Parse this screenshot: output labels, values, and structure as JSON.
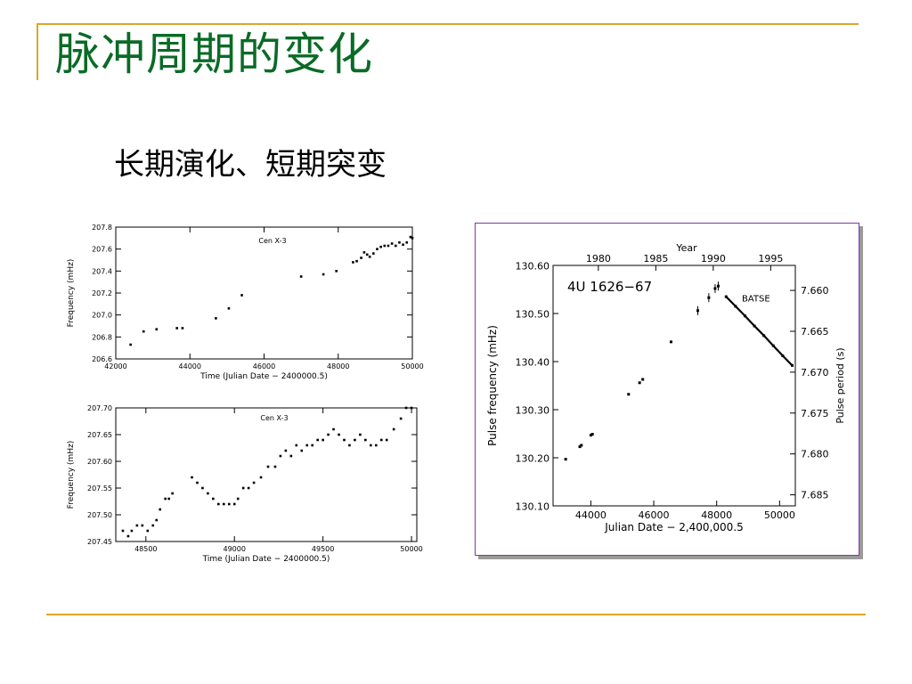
{
  "slide": {
    "title": "脉冲周期的变化",
    "subtitle": "长期演化、短期突变",
    "accent_color": "#e0a526",
    "title_color": "#0a6b26"
  },
  "chart_data": [
    {
      "type": "scatter",
      "title": "Cen X-3",
      "xlabel": "Time (Julian Date − 2400000.5)",
      "ylabel": "Frequency (mHz)",
      "xlim": [
        42000,
        50000
      ],
      "ylim": [
        206.6,
        207.8
      ],
      "xticks": [
        42000,
        44000,
        46000,
        48000,
        50000
      ],
      "yticks": [
        206.6,
        206.8,
        207.0,
        207.2,
        207.4,
        207.6,
        207.8
      ],
      "ytick_labels": [
        "206.6",
        "206.8",
        "207.0",
        "207.2",
        "207.4",
        "207.6",
        "207.8"
      ],
      "grid": false,
      "series": [
        {
          "x": [
            42400,
            42750,
            43100,
            43650,
            43800,
            44700,
            45050,
            45400,
            47000,
            47600,
            47950,
            48400,
            48500,
            48620,
            48700,
            48780,
            48850,
            48950,
            49050,
            49150,
            49250,
            49350,
            49450,
            49550,
            49650,
            49750,
            49850,
            49950,
            50000
          ],
          "y": [
            206.73,
            206.85,
            206.87,
            206.88,
            206.88,
            206.97,
            207.06,
            207.18,
            207.35,
            207.37,
            207.4,
            207.48,
            207.49,
            207.52,
            207.57,
            207.55,
            207.53,
            207.56,
            207.6,
            207.62,
            207.63,
            207.63,
            207.65,
            207.63,
            207.66,
            207.64,
            207.66,
            207.71,
            207.7
          ]
        }
      ]
    },
    {
      "type": "scatter",
      "title": "Cen X-3",
      "xlabel": "Time (Julian Date − 2400000.5)",
      "ylabel": "Frequency (mHz)",
      "xlim": [
        48330,
        50030
      ],
      "ylim": [
        207.45,
        207.7
      ],
      "xticks": [
        48500,
        49000,
        49500,
        50000
      ],
      "yticks": [
        207.45,
        207.5,
        207.55,
        207.6,
        207.65,
        207.7
      ],
      "ytick_labels": [
        "207.45",
        "207.50",
        "207.55",
        "207.60",
        "207.65",
        "207.70"
      ],
      "grid": false,
      "series": [
        {
          "x": [
            48370,
            48400,
            48420,
            48450,
            48480,
            48510,
            48540,
            48560,
            48580,
            48610,
            48630,
            48650,
            48760,
            48790,
            48820,
            48850,
            48880,
            48910,
            48940,
            48970,
            49000,
            49020,
            49050,
            49080,
            49110,
            49150,
            49190,
            49230,
            49260,
            49290,
            49320,
            49350,
            49380,
            49410,
            49440,
            49470,
            49500,
            49530,
            49560,
            49590,
            49620,
            49650,
            49680,
            49710,
            49740,
            49770,
            49800,
            49830,
            49860,
            49900,
            49940,
            49970,
            50000
          ],
          "y": [
            207.47,
            207.46,
            207.47,
            207.48,
            207.48,
            207.47,
            207.48,
            207.49,
            207.51,
            207.53,
            207.53,
            207.54,
            207.57,
            207.56,
            207.55,
            207.54,
            207.53,
            207.52,
            207.52,
            207.52,
            207.52,
            207.53,
            207.55,
            207.55,
            207.56,
            207.57,
            207.59,
            207.59,
            207.61,
            207.62,
            207.61,
            207.63,
            207.62,
            207.63,
            207.63,
            207.64,
            207.64,
            207.65,
            207.66,
            207.65,
            207.64,
            207.63,
            207.64,
            207.65,
            207.64,
            207.63,
            207.63,
            207.64,
            207.64,
            207.66,
            207.68,
            207.7,
            207.7
          ]
        }
      ]
    },
    {
      "type": "scatter",
      "title": "4U 1626−67",
      "annotations": [
        "BATSE"
      ],
      "xlabel": "Julian Date − 2,400,000.5",
      "ylabel": "Pulse frequency (mHz)",
      "x2label": "Year",
      "y2label": "Pulse period (s)",
      "xlim": [
        42800,
        50500
      ],
      "ylim": [
        130.1,
        130.6
      ],
      "xticks": [
        44000,
        46000,
        48000,
        50000
      ],
      "yticks": [
        130.1,
        130.2,
        130.3,
        130.4,
        130.5,
        130.6
      ],
      "ytick_labels": [
        "130.10",
        "130.20",
        "130.30",
        "130.40",
        "130.50",
        "130.60"
      ],
      "top_axis_ticks": [
        {
          "label": "1980",
          "x": 44239
        },
        {
          "label": "1985",
          "x": 46065
        },
        {
          "label": "1990",
          "x": 47891
        },
        {
          "label": "1995",
          "x": 49717
        }
      ],
      "right_axis_ticks": [
        {
          "label": "7.660",
          "y": 130.548
        },
        {
          "label": "7.665",
          "y": 130.463
        },
        {
          "label": "7.670",
          "y": 130.378
        },
        {
          "label": "7.675",
          "y": 130.293
        },
        {
          "label": "7.680",
          "y": 130.208
        },
        {
          "label": "7.685",
          "y": 130.123
        }
      ],
      "grid": false,
      "series": [
        {
          "name": "BATSE",
          "x": [
            48300,
            48600,
            48900,
            49200,
            49500,
            49800,
            50100,
            50400
          ],
          "y": [
            130.535,
            130.515,
            130.495,
            130.474,
            130.454,
            130.433,
            130.412,
            130.392
          ]
        },
        {
          "x": [
            43200,
            43650,
            43700,
            44000,
            44050,
            45200,
            45550,
            45650,
            46550,
            47400,
            47750,
            47950,
            48050
          ],
          "y": [
            130.197,
            130.223,
            130.226,
            130.247,
            130.249,
            130.332,
            130.356,
            130.363,
            130.441,
            130.506,
            130.533,
            130.552,
            130.557
          ]
        }
      ]
    }
  ]
}
